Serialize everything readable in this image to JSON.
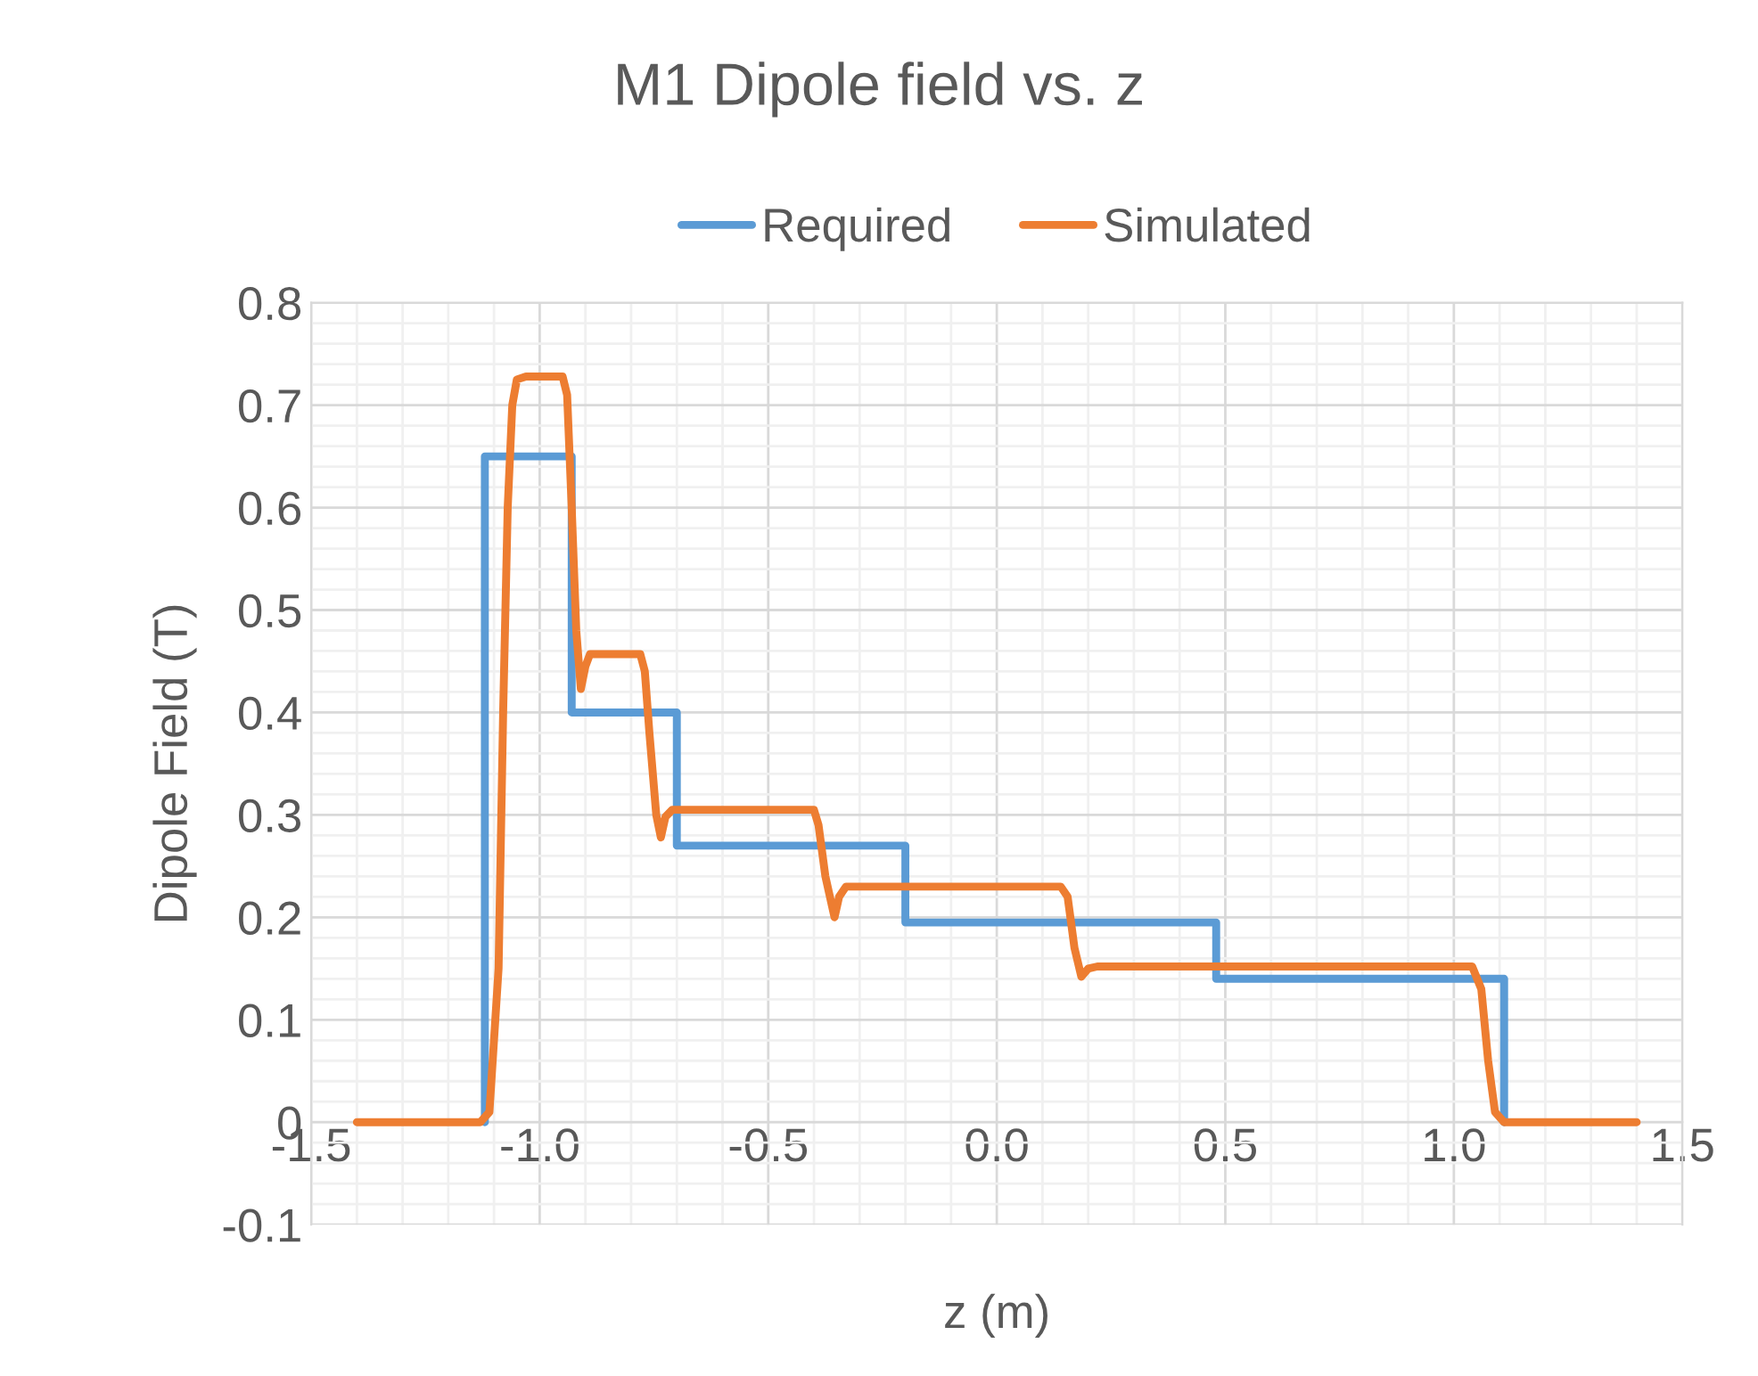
{
  "chart_data": {
    "type": "line",
    "title": "M1 Dipole field vs. z",
    "xlabel": "z (m)",
    "ylabel": "Dipole Field (T)",
    "xlim": [
      -1.5,
      1.5
    ],
    "xticks": [
      -1.5,
      {
        "value": -1,
        "label": "-1.0"
      },
      -0.5,
      {
        "value": 0,
        "label": "0.0"
      },
      0.5,
      {
        "value": 1,
        "label": "1.0"
      },
      1.5
    ],
    "ylim": [
      -0.1,
      0.8
    ],
    "yticks": [
      -0.1,
      0,
      0.1,
      0.2,
      0.3,
      0.4,
      0.5,
      0.6,
      0.7,
      0.8
    ],
    "grid": true,
    "legend": "top",
    "marker": "none",
    "line_style": "solid",
    "series": [
      {
        "name": "Required",
        "color": "#5b9bd5",
        "x": [
          -1.12,
          -1.12,
          -0.93,
          -0.93,
          -0.7,
          -0.7,
          -0.2,
          -0.2,
          0.48,
          0.48,
          1.11,
          1.11
        ],
        "values": [
          0,
          0.65,
          0.65,
          0.4,
          0.4,
          0.27,
          0.27,
          0.195,
          0.195,
          0.14,
          0.14,
          0
        ]
      },
      {
        "name": "Simulated",
        "color": "#ed7d31",
        "x": [
          -1.4,
          -1.13,
          -1.11,
          -1.09,
          -1.08,
          -1.07,
          -1.06,
          -1.05,
          -1.03,
          -0.95,
          -0.94,
          -0.93,
          -0.92,
          -0.91,
          -0.9,
          -0.89,
          -0.78,
          -0.77,
          -0.76,
          -0.745,
          -0.735,
          -0.725,
          -0.71,
          -0.4,
          -0.39,
          -0.375,
          -0.355,
          -0.345,
          -0.33,
          0.14,
          0.155,
          0.17,
          0.185,
          0.2,
          0.22,
          1.04,
          1.06,
          1.075,
          1.09,
          1.11,
          1.4
        ],
        "values": [
          0,
          0,
          0.01,
          0.15,
          0.4,
          0.6,
          0.7,
          0.725,
          0.728,
          0.728,
          0.71,
          0.6,
          0.48,
          0.423,
          0.445,
          0.457,
          0.457,
          0.44,
          0.38,
          0.3,
          0.278,
          0.298,
          0.305,
          0.305,
          0.29,
          0.24,
          0.2,
          0.22,
          0.23,
          0.23,
          0.22,
          0.17,
          0.142,
          0.15,
          0.152,
          0.152,
          0.13,
          0.06,
          0.01,
          0,
          0
        ]
      }
    ]
  }
}
